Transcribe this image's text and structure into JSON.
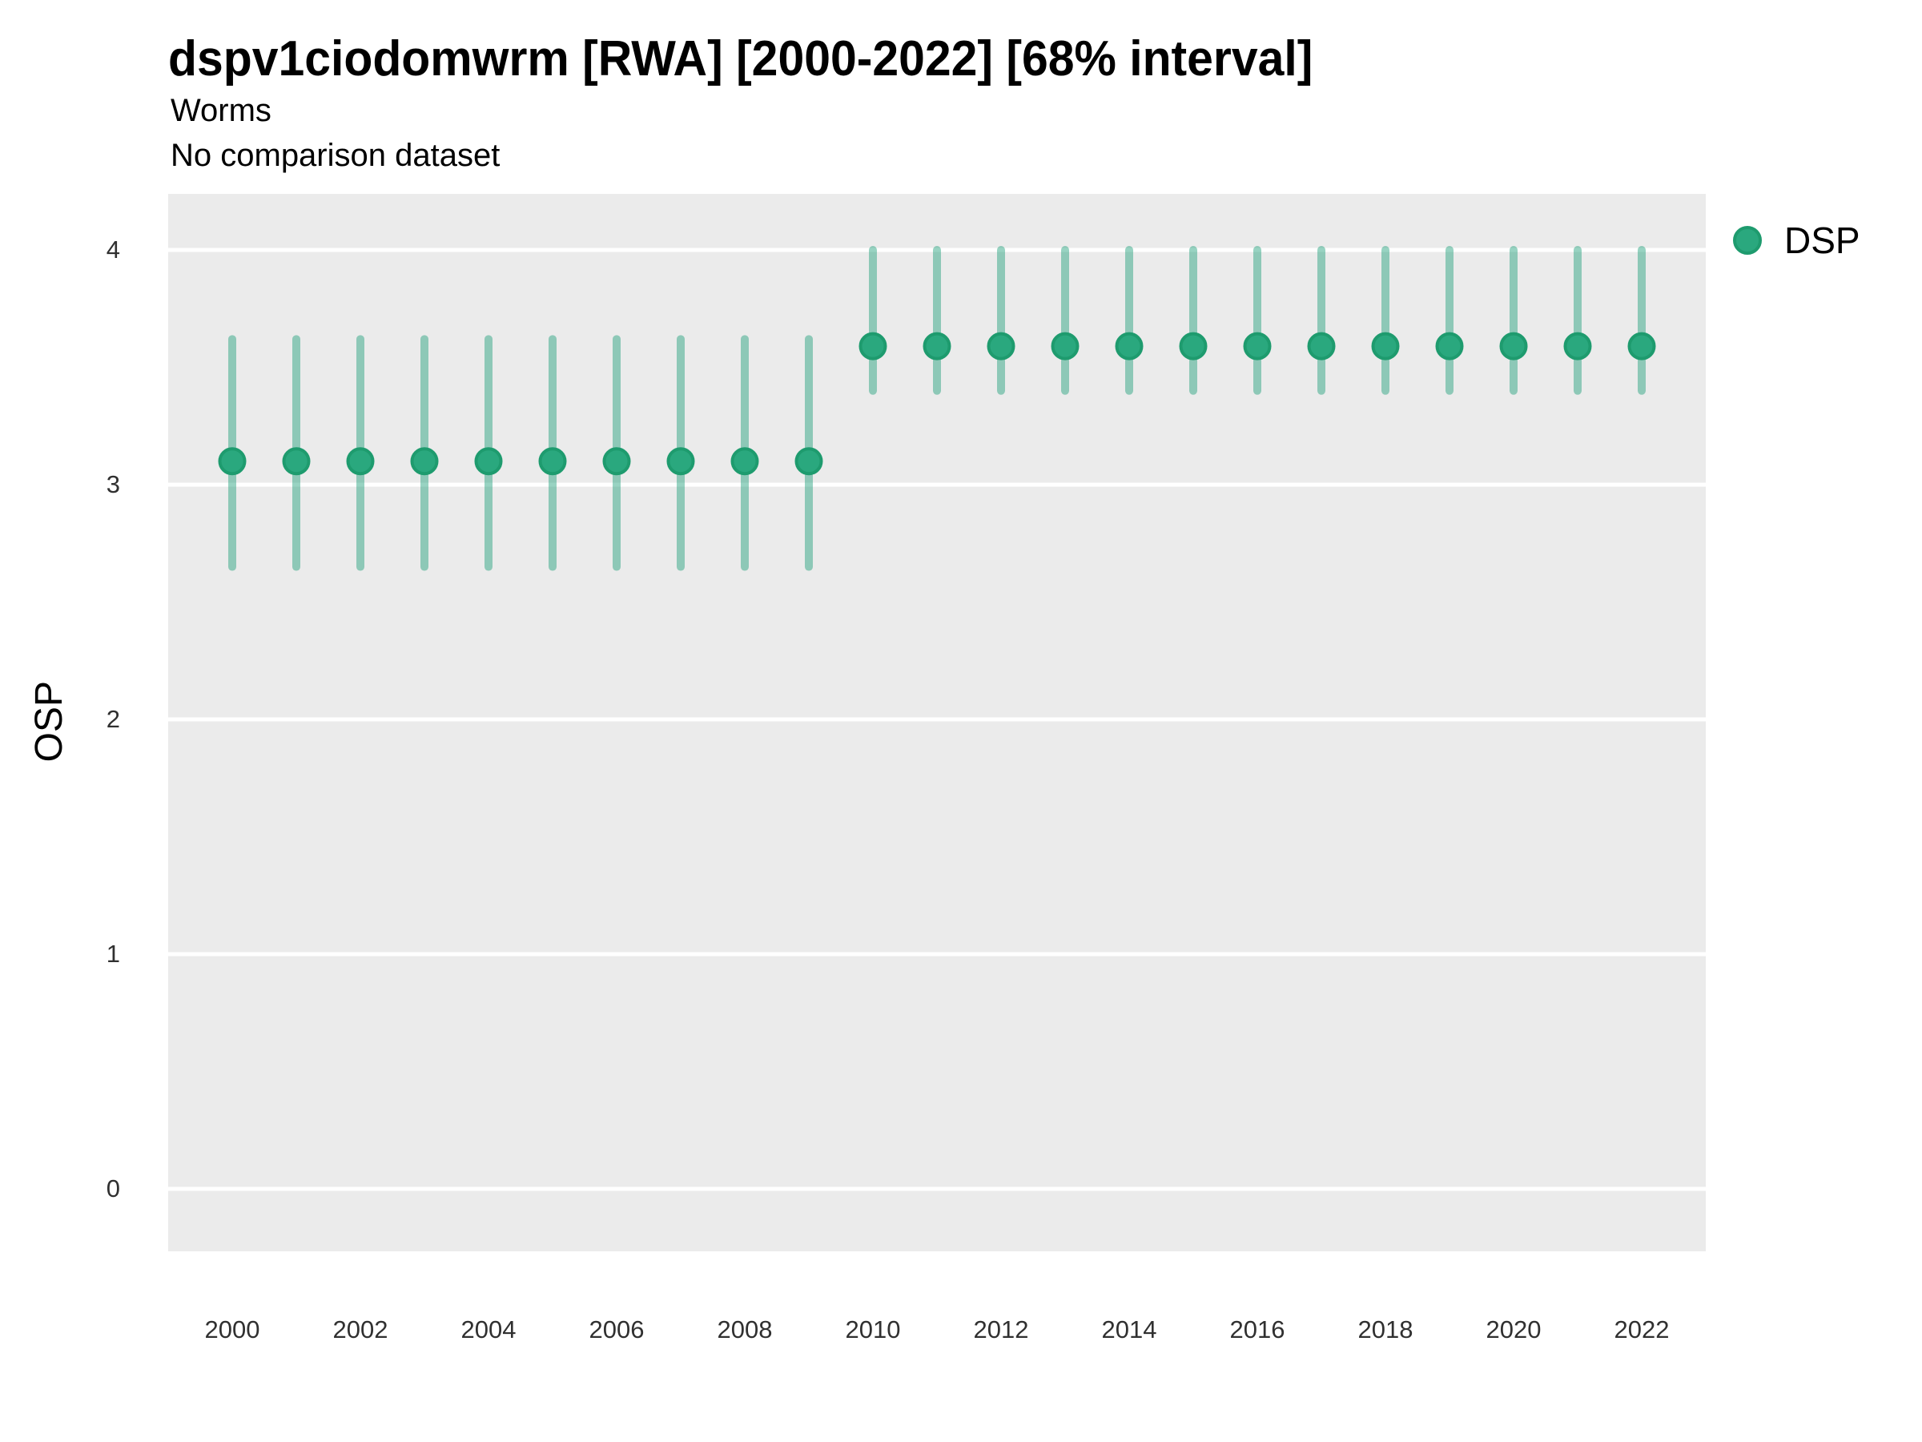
{
  "header": {
    "title": "dspv1ciodomwrm [RWA] [2000-2022] [68% interval]",
    "subtitle": "Worms",
    "comparison_note": "No comparison dataset"
  },
  "legend": {
    "position": "right",
    "items": [
      {
        "label": "DSP",
        "color": "#2aa87e"
      }
    ]
  },
  "colors": {
    "panel_background": "#ebebeb",
    "gridline": "#ffffff",
    "point_fill": "#2aa87e",
    "point_stroke": "#1e9b6e",
    "interval_bar": "rgba(27,158,119,0.45)",
    "tick_text": "#303030",
    "text": "#000000"
  },
  "chart_data": {
    "type": "scatter",
    "title": "dspv1ciodomwrm [RWA] [2000-2022] [68% interval]",
    "subtitle": "Worms",
    "note": "No comparison dataset",
    "xlabel": "",
    "ylabel": "OSP",
    "interval": "68%",
    "xlim": [
      1999,
      2023
    ],
    "ylim": [
      -0.27,
      4.24
    ],
    "x_ticks": [
      2000,
      2002,
      2004,
      2006,
      2008,
      2010,
      2012,
      2014,
      2016,
      2018,
      2020,
      2022
    ],
    "y_ticks": [
      0,
      1,
      2,
      3,
      4
    ],
    "grid": "major-horizontal-only",
    "legend_position": "right",
    "series": [
      {
        "name": "DSP",
        "points": [
          {
            "year": 2000,
            "value": 3.1,
            "low": 2.65,
            "high": 3.62
          },
          {
            "year": 2001,
            "value": 3.1,
            "low": 2.65,
            "high": 3.62
          },
          {
            "year": 2002,
            "value": 3.1,
            "low": 2.65,
            "high": 3.62
          },
          {
            "year": 2003,
            "value": 3.1,
            "low": 2.65,
            "high": 3.62
          },
          {
            "year": 2004,
            "value": 3.1,
            "low": 2.65,
            "high": 3.62
          },
          {
            "year": 2005,
            "value": 3.1,
            "low": 2.65,
            "high": 3.62
          },
          {
            "year": 2006,
            "value": 3.1,
            "low": 2.65,
            "high": 3.62
          },
          {
            "year": 2007,
            "value": 3.1,
            "low": 2.65,
            "high": 3.62
          },
          {
            "year": 2008,
            "value": 3.1,
            "low": 2.65,
            "high": 3.62
          },
          {
            "year": 2009,
            "value": 3.1,
            "low": 2.65,
            "high": 3.62
          },
          {
            "year": 2010,
            "value": 3.59,
            "low": 3.4,
            "high": 4.0
          },
          {
            "year": 2011,
            "value": 3.59,
            "low": 3.4,
            "high": 4.0
          },
          {
            "year": 2012,
            "value": 3.59,
            "low": 3.4,
            "high": 4.0
          },
          {
            "year": 2013,
            "value": 3.59,
            "low": 3.4,
            "high": 4.0
          },
          {
            "year": 2014,
            "value": 3.59,
            "low": 3.4,
            "high": 4.0
          },
          {
            "year": 2015,
            "value": 3.59,
            "low": 3.4,
            "high": 4.0
          },
          {
            "year": 2016,
            "value": 3.59,
            "low": 3.4,
            "high": 4.0
          },
          {
            "year": 2017,
            "value": 3.59,
            "low": 3.4,
            "high": 4.0
          },
          {
            "year": 2018,
            "value": 3.59,
            "low": 3.4,
            "high": 4.0
          },
          {
            "year": 2019,
            "value": 3.59,
            "low": 3.4,
            "high": 4.0
          },
          {
            "year": 2020,
            "value": 3.59,
            "low": 3.4,
            "high": 4.0
          },
          {
            "year": 2021,
            "value": 3.59,
            "low": 3.4,
            "high": 4.0
          },
          {
            "year": 2022,
            "value": 3.59,
            "low": 3.4,
            "high": 4.0
          }
        ]
      }
    ]
  }
}
